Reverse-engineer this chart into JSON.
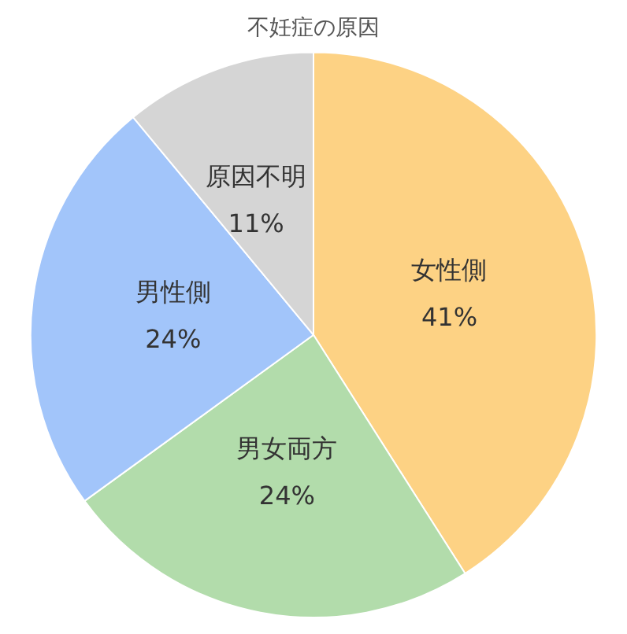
{
  "chart_data": {
    "type": "pie",
    "title": "不妊症の原因",
    "categories": [
      "女性側",
      "男女両方",
      "男性側",
      "原因不明"
    ],
    "values": [
      41,
      24,
      24,
      11
    ],
    "colors": [
      "#fdd284",
      "#b2dcab",
      "#a2c5fa",
      "#d5d5d5"
    ],
    "value_labels": [
      "41%",
      "24%",
      "24%",
      "11%"
    ],
    "legend": false
  }
}
